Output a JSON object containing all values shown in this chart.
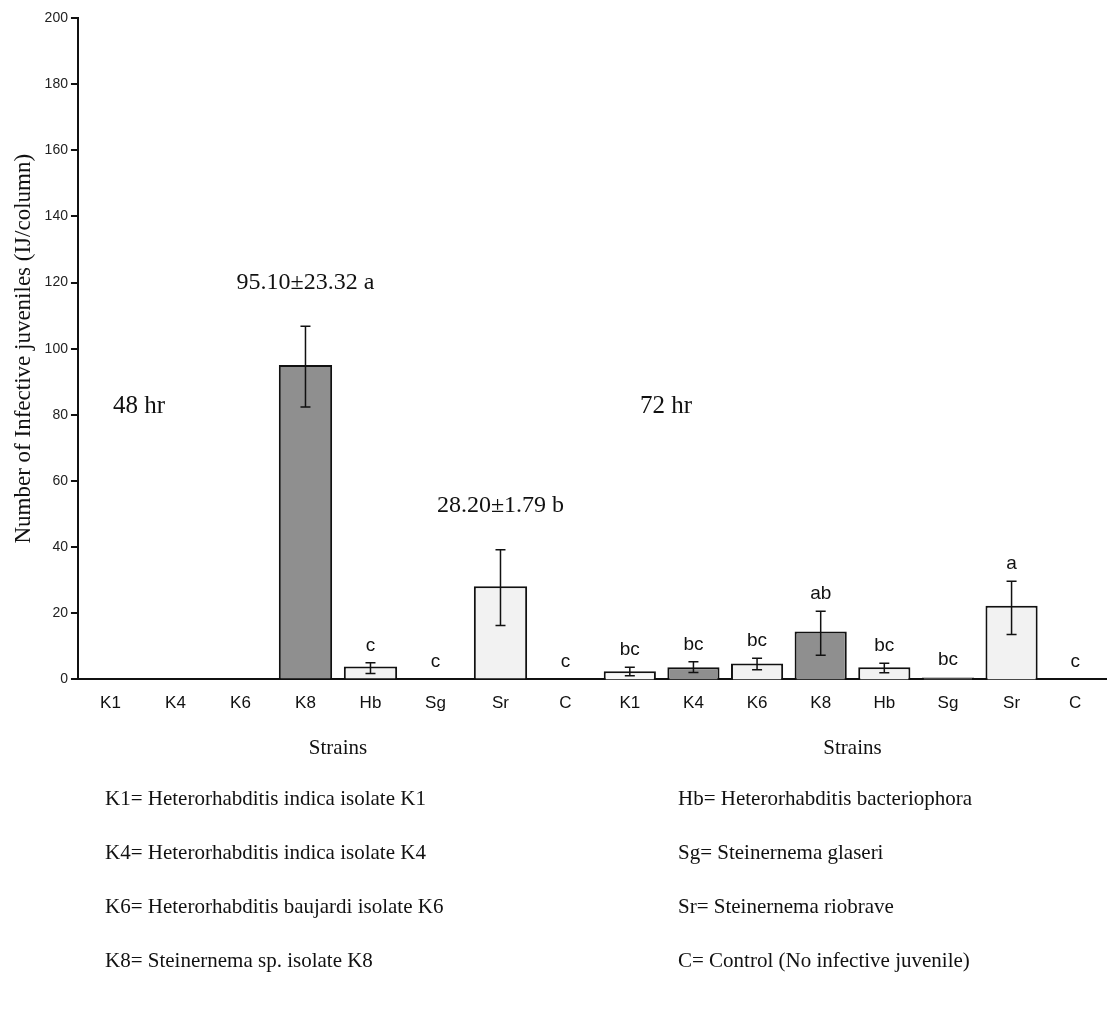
{
  "chart_data": [
    {
      "type": "bar",
      "title": "48 hr",
      "xlabel": "Strains",
      "ylabel": "Number of Infective juveniles (IJ/column)",
      "categories": [
        "K1",
        "K4",
        "K6",
        "K8",
        "Hb",
        "Sg",
        "Sr",
        "C"
      ],
      "values": [
        0,
        0,
        0,
        95.1,
        3.9,
        0,
        28.2,
        0
      ],
      "colors": [
        "#f2f2f2",
        "#8f8f8f",
        "#f2f2f2",
        "#8f8f8f",
        "#f2f2f2",
        "#8f8f8f",
        "#f2f2f2",
        "#f2f2f2"
      ],
      "errors": [
        null,
        null,
        null,
        [
          82.4,
          106.8
        ],
        [
          1.8,
          5.0
        ],
        null,
        [
          16.3,
          39.2
        ],
        null
      ],
      "value_labels": [
        null,
        null,
        null,
        "95.10±23.32 a",
        "c",
        "c",
        "28.20±1.79 b",
        "c"
      ],
      "ylim": [
        0,
        200
      ],
      "yticks": [
        0,
        20,
        40,
        60,
        80,
        100,
        120,
        140,
        160,
        180,
        200
      ],
      "annotations": [
        "K1= Heterorhabditis indica isolate K1",
        "K4= Heterorhabditis indica isolate K4",
        "K6= Heterorhabditis baujardi isolate K6",
        "K8= Steinernema sp. isolate K8"
      ]
    },
    {
      "type": "bar",
      "title": "72 hr",
      "xlabel": "Strains",
      "categories": [
        "K1",
        "K4",
        "K6",
        "K8",
        "Hb",
        "Sg",
        "Sr",
        "C"
      ],
      "values": [
        2.5,
        3.7,
        4.8,
        14.5,
        3.7,
        0.6,
        22.3,
        0
      ],
      "colors": [
        "#f7f7f7",
        "#8f8f8f",
        "#f2f2f2",
        "#8f8f8f",
        "#f2f2f2",
        "#8f8f8f",
        "#f2f2f2",
        "#f2f2f2"
      ],
      "errors": [
        [
          1.1,
          3.7
        ],
        [
          2.1,
          5.3
        ],
        [
          2.9,
          6.4
        ],
        [
          7.3,
          20.6
        ],
        [
          2.0,
          4.9
        ],
        null,
        [
          13.6,
          29.7
        ],
        null
      ],
      "value_labels": [
        "bc",
        "bc",
        "bc",
        "ab",
        "bc",
        "bc",
        "a",
        "c"
      ],
      "ylim": [
        0,
        200
      ],
      "yticks": [
        0,
        20,
        40,
        60,
        80,
        100,
        120,
        140,
        160,
        180,
        200
      ],
      "tick_labels": "x",
      "annotations": [
        "Hb= Heterorhabditis bacteriophora",
        "Sg= Steinernema glaseri",
        "Sr= Steinernema riobrave",
        "C= Control (No infective juvenile)"
      ]
    }
  ]
}
